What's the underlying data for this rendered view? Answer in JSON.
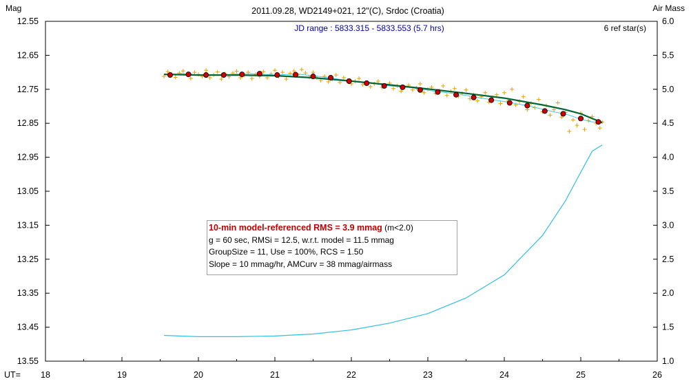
{
  "chart_data": {
    "type": "scatter",
    "title": "2011.09.28, WD2149+021, 12\"(C), Srdoc (Croatia)",
    "subtitle": "JD range : 5833.315 - 5833.553 (5.7 hrs)",
    "ref_stars": "6 ref star(s)",
    "ylabel_left": "Mag",
    "ylabel_right": "Air Mass",
    "xlabel": "UT=",
    "xlim": [
      18,
      26
    ],
    "ylim_left": [
      12.55,
      13.55
    ],
    "ylim_right": [
      1.0,
      6.0
    ],
    "y_left_inverted": true,
    "grid": false,
    "x_ticks": [
      "18",
      "19",
      "20",
      "21",
      "22",
      "23",
      "24",
      "25",
      "26"
    ],
    "y_left_ticks": [
      "12.55",
      "12.65",
      "12.75",
      "12.85",
      "12.95",
      "13.05",
      "13.15",
      "13.25",
      "13.35",
      "13.45",
      "13.55"
    ],
    "y_right_ticks": [
      "6.0",
      "5.5",
      "5.0",
      "4.5",
      "4.0",
      "3.5",
      "3.0",
      "2.5",
      "2.0",
      "1.5",
      "1.0"
    ],
    "colors": {
      "raw_points": "#e8a000",
      "binned_points": "#cc0000",
      "model_line": "#006633",
      "smooth_line": "#40c8e0",
      "airmass_line": "#30c0e0",
      "subtitle": "#0000aa",
      "rms_text": "#c00000"
    },
    "series": [
      {
        "name": "",
        "kind": "raw",
        "x": [
          19.55,
          19.6,
          19.65,
          19.7,
          19.75,
          19.8,
          19.85,
          19.9,
          19.95,
          20.0,
          20.05,
          20.1,
          20.15,
          20.2,
          20.25,
          20.3,
          20.35,
          20.4,
          20.45,
          20.5,
          20.55,
          20.6,
          20.65,
          20.7,
          20.75,
          20.8,
          20.85,
          20.9,
          20.95,
          21.0,
          21.05,
          21.1,
          21.15,
          21.2,
          21.25,
          21.3,
          21.35,
          21.4,
          21.45,
          21.5,
          21.55,
          21.6,
          21.65,
          21.7,
          21.75,
          21.8,
          21.85,
          21.9,
          21.95,
          22.0,
          22.05,
          22.1,
          22.15,
          22.2,
          22.25,
          22.3,
          22.35,
          22.4,
          22.45,
          22.5,
          22.55,
          22.6,
          22.65,
          22.7,
          22.75,
          22.8,
          22.85,
          22.9,
          22.95,
          23.0,
          23.05,
          23.1,
          23.15,
          23.2,
          23.25,
          23.3,
          23.35,
          23.4,
          23.45,
          23.5,
          23.55,
          23.6,
          23.65,
          23.7,
          23.75,
          23.8,
          23.85,
          23.9,
          23.95,
          24.0,
          24.05,
          24.1,
          24.15,
          24.2,
          24.25,
          24.3,
          24.35,
          24.4,
          24.45,
          24.5,
          24.55,
          24.6,
          24.65,
          24.7,
          24.75,
          24.8,
          24.85,
          24.9,
          24.95,
          25.0,
          25.05,
          25.1,
          25.15,
          25.2,
          25.25,
          25.28
        ],
        "y": [
          12.712,
          12.698,
          12.705,
          12.715,
          12.702,
          12.696,
          12.708,
          12.718,
          12.7,
          12.706,
          12.712,
          12.694,
          12.716,
          12.707,
          12.699,
          12.72,
          12.704,
          12.713,
          12.702,
          12.697,
          12.716,
          12.709,
          12.7,
          12.718,
          12.706,
          12.712,
          12.698,
          12.716,
          12.705,
          12.694,
          12.712,
          12.7,
          12.72,
          12.703,
          12.696,
          12.708,
          12.692,
          12.702,
          12.714,
          12.7,
          12.716,
          12.724,
          12.712,
          12.728,
          12.72,
          12.708,
          12.73,
          12.716,
          12.724,
          12.734,
          12.726,
          12.718,
          12.736,
          12.73,
          12.742,
          12.734,
          12.726,
          12.744,
          12.738,
          12.732,
          12.748,
          12.74,
          12.756,
          12.744,
          12.738,
          12.752,
          12.746,
          12.734,
          12.76,
          12.75,
          12.744,
          12.762,
          12.754,
          12.74,
          12.768,
          12.756,
          12.748,
          12.77,
          12.762,
          12.752,
          12.778,
          12.766,
          12.784,
          12.772,
          12.76,
          12.788,
          12.774,
          12.766,
          12.792,
          12.76,
          12.784,
          12.75,
          12.796,
          12.786,
          12.772,
          12.81,
          12.792,
          12.804,
          12.78,
          12.816,
          12.798,
          12.826,
          12.81,
          12.79,
          12.832,
          12.818,
          12.874,
          12.84,
          12.856,
          12.82,
          12.868,
          12.842,
          12.83,
          12.85,
          12.864,
          12.846
        ]
      },
      {
        "name": "",
        "kind": "binned",
        "x": [
          19.63,
          19.87,
          20.1,
          20.33,
          20.57,
          20.8,
          21.03,
          21.27,
          21.5,
          21.73,
          21.97,
          22.2,
          22.43,
          22.67,
          22.9,
          23.13,
          23.37,
          23.6,
          23.83,
          24.07,
          24.3,
          24.53,
          24.77,
          25.0,
          25.23
        ],
        "y": [
          12.708,
          12.706,
          12.708,
          12.708,
          12.706,
          12.704,
          12.708,
          12.707,
          12.712,
          12.716,
          12.726,
          12.732,
          12.74,
          12.744,
          12.752,
          12.758,
          12.766,
          12.774,
          12.782,
          12.79,
          12.798,
          12.814,
          12.822,
          12.836,
          12.846
        ]
      },
      {
        "name": "",
        "kind": "model",
        "x": [
          19.55,
          20.0,
          20.5,
          21.0,
          21.5,
          22.0,
          22.5,
          23.0,
          23.5,
          24.0,
          24.5,
          24.8,
          25.0,
          25.28
        ],
        "y": [
          12.706,
          12.708,
          12.708,
          12.71,
          12.716,
          12.726,
          12.737,
          12.749,
          12.762,
          12.776,
          12.796,
          12.81,
          12.822,
          12.848
        ]
      },
      {
        "name": "",
        "kind": "smooth",
        "x": [
          19.55,
          19.8,
          20.1,
          20.4,
          20.7,
          21.0,
          21.3,
          21.6,
          21.9,
          22.2,
          22.5,
          22.8,
          23.1,
          23.4,
          23.7,
          24.0,
          24.3,
          24.6,
          24.85,
          25.0,
          25.15,
          25.28
        ],
        "y": [
          12.706,
          12.704,
          12.709,
          12.706,
          12.704,
          12.708,
          12.705,
          12.713,
          12.722,
          12.73,
          12.74,
          12.746,
          12.756,
          12.764,
          12.776,
          12.786,
          12.798,
          12.814,
          12.826,
          12.838,
          12.846,
          12.846
        ]
      },
      {
        "name": "",
        "kind": "airmass",
        "axis": "right",
        "x": [
          19.55,
          20.0,
          20.5,
          21.0,
          21.5,
          22.0,
          22.5,
          23.0,
          23.5,
          24.0,
          24.5,
          24.8,
          25.0,
          25.15,
          25.28
        ],
        "y": [
          1.38,
          1.36,
          1.36,
          1.37,
          1.4,
          1.46,
          1.56,
          1.7,
          1.93,
          2.27,
          2.85,
          3.36,
          3.78,
          4.09,
          4.18
        ]
      }
    ],
    "annotation_box": {
      "line1_bold": "10-min model-referenced RMS = 3.9 mmag",
      "line1_rest": " (m<2.0)",
      "line2": "g = 60 sec, RMSi = 12.5, w.r.t. model = 11.5 mmag",
      "line3": "GroupSize = 11, Use = 100%, RCS = 1.50",
      "line4": "Slope = 10 mmag/hr, AMCurv = 38 mmag/airmass"
    }
  }
}
